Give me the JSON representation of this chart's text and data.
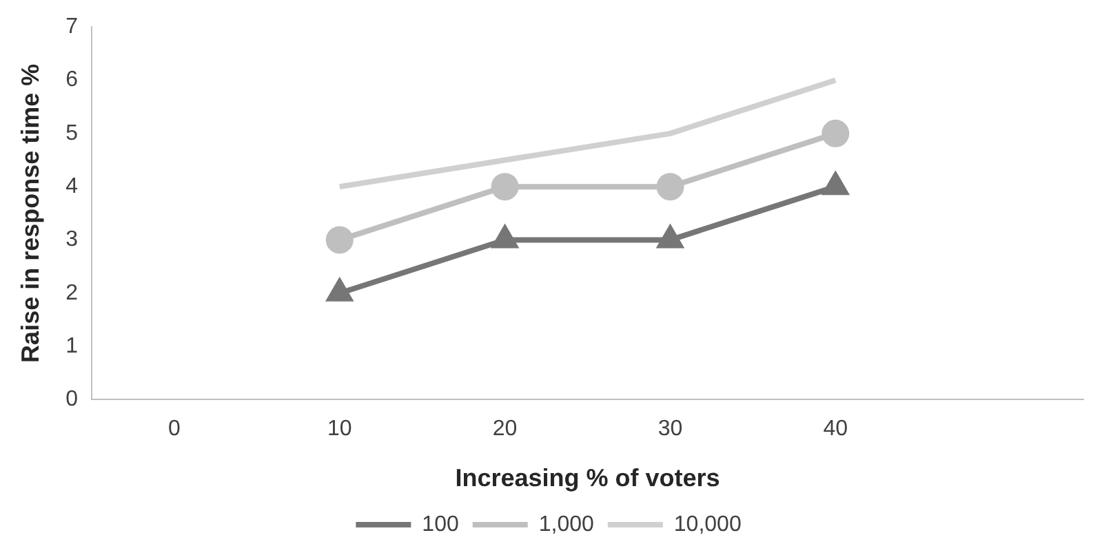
{
  "chart_data": {
    "type": "line",
    "xlabel": "Increasing % of voters",
    "ylabel": "Raise in response time %",
    "categories": [
      "0",
      "10",
      "20",
      "30",
      "40",
      null
    ],
    "series": [
      {
        "name": "100",
        "color": "#767676",
        "marker": "triangle",
        "values": [
          null,
          2,
          3,
          3,
          4,
          null
        ]
      },
      {
        "name": "1,000",
        "color": "#bfbfbf",
        "marker": "circle",
        "values": [
          null,
          3,
          4,
          4,
          5,
          null
        ]
      },
      {
        "name": "10,000",
        "color": "#d0d0d0",
        "marker": "none",
        "values": [
          null,
          4,
          4.5,
          5,
          6,
          null
        ]
      }
    ],
    "ylim": [
      0,
      7
    ],
    "yticks": [
      0,
      1,
      2,
      3,
      4,
      5,
      6,
      7
    ],
    "grid": false,
    "legend": "bottom"
  }
}
